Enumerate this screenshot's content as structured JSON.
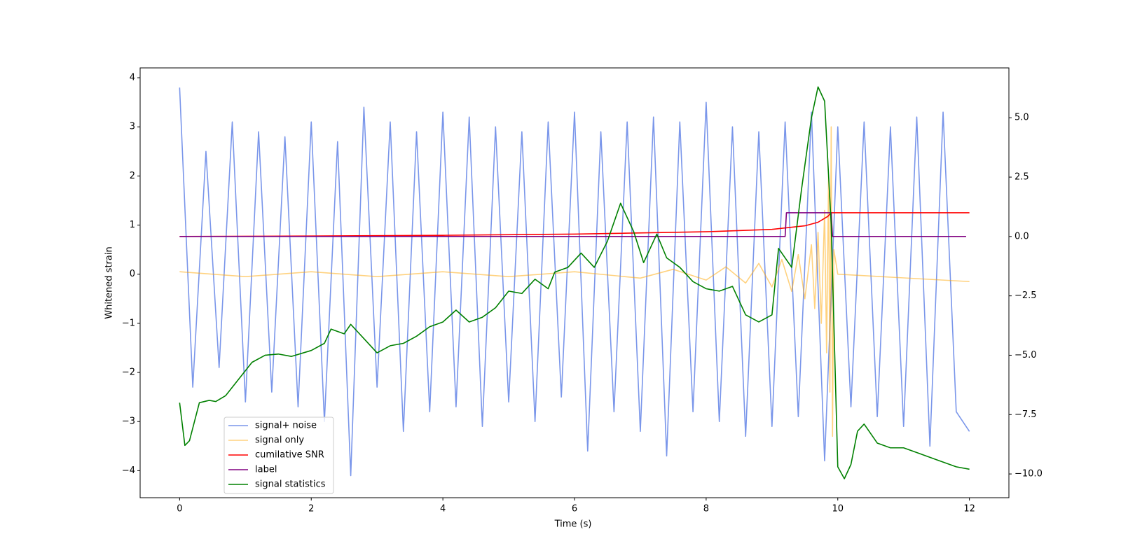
{
  "chart_data": {
    "type": "line",
    "xlabel": "Time (s)",
    "ylabel": "Whitened strain",
    "xlim": [
      -0.6,
      12.6
    ],
    "xticks": [
      0,
      2,
      4,
      6,
      8,
      10,
      12
    ],
    "ylim": [
      -4.55,
      4.2
    ],
    "yticks": [
      {
        "value": -4,
        "label": "−4"
      },
      {
        "value": -3,
        "label": "−3"
      },
      {
        "value": -2,
        "label": "−2"
      },
      {
        "value": -1,
        "label": "−1"
      },
      0,
      1,
      2,
      3,
      4
    ],
    "y2lim": [
      -11.0,
      7.1
    ],
    "y2ticks": [
      {
        "value": -10,
        "label": "−10.0"
      },
      {
        "value": -7.5,
        "label": "−7.5"
      },
      {
        "value": -5,
        "label": "−5.0"
      },
      {
        "value": -2.5,
        "label": "−2.5"
      },
      {
        "value": 0,
        "label": "0.0"
      },
      {
        "value": 2.5,
        "label": "2.5"
      },
      {
        "value": 5,
        "label": "5.0"
      }
    ],
    "legend": "lower left",
    "series": [
      {
        "name": "signal+ noise",
        "color": "#4169e1",
        "alpha": 0.7,
        "x": [
          0,
          0.2,
          0.4,
          0.6,
          0.8,
          1.0,
          1.2,
          1.4,
          1.6,
          1.8,
          2.0,
          2.2,
          2.4,
          2.6,
          2.8,
          3.0,
          3.2,
          3.4,
          3.6,
          3.8,
          4.0,
          4.2,
          4.4,
          4.6,
          4.8,
          5.0,
          5.2,
          5.4,
          5.6,
          5.8,
          6.0,
          6.2,
          6.4,
          6.6,
          6.8,
          7.0,
          7.2,
          7.4,
          7.6,
          7.8,
          8.0,
          8.2,
          8.4,
          8.6,
          8.8,
          9.0,
          9.2,
          9.4,
          9.6,
          9.8,
          10.0,
          10.2,
          10.4,
          10.6,
          10.8,
          11.0,
          11.2,
          11.4,
          11.6,
          11.8,
          12.0
        ],
        "values": [
          3.8,
          -2.3,
          2.5,
          -1.9,
          3.1,
          -2.6,
          2.9,
          -2.4,
          2.8,
          -2.7,
          3.1,
          -3.0,
          2.7,
          -4.1,
          3.4,
          -2.3,
          3.1,
          -3.2,
          2.9,
          -2.8,
          3.3,
          -2.7,
          3.2,
          -3.1,
          3.0,
          -2.6,
          2.9,
          -3.0,
          3.1,
          -2.5,
          3.3,
          -3.6,
          2.9,
          -2.8,
          3.1,
          -3.2,
          3.2,
          -3.7,
          3.1,
          -2.8,
          3.5,
          -3.0,
          3.0,
          -3.3,
          2.9,
          -3.1,
          3.1,
          -2.9,
          3.3,
          -3.8,
          3.0,
          -2.7,
          3.1,
          -2.9,
          3.0,
          -3.1,
          3.2,
          -3.5,
          3.3,
          -2.8,
          -3.2
        ]
      },
      {
        "name": "signal only",
        "color": "#ffa500",
        "alpha": 0.5,
        "x": [
          0,
          1,
          2,
          3,
          4,
          5,
          6,
          7,
          7.5,
          8,
          8.3,
          8.6,
          8.8,
          9.0,
          9.15,
          9.3,
          9.4,
          9.5,
          9.6,
          9.65,
          9.7,
          9.75,
          9.8,
          9.83,
          9.86,
          9.88,
          9.9,
          9.92,
          9.94,
          10.0,
          12.0
        ],
        "values": [
          0.05,
          -0.05,
          0.05,
          -0.05,
          0.05,
          -0.05,
          0.05,
          -0.08,
          0.1,
          -0.12,
          0.15,
          -0.18,
          0.22,
          -0.26,
          0.3,
          -0.35,
          0.4,
          -0.5,
          0.6,
          -0.7,
          0.85,
          -1.0,
          1.3,
          -1.6,
          2.0,
          -2.4,
          3.0,
          -3.3,
          0.5,
          0,
          -0.15
        ]
      },
      {
        "name": "cumilative SNR",
        "color": "#ff0000",
        "alpha": 1,
        "axis": "y2",
        "x": [
          0,
          2,
          4,
          6,
          8,
          9,
          9.5,
          9.7,
          9.85,
          9.9,
          10,
          12
        ],
        "values": [
          0,
          0.02,
          0.05,
          0.1,
          0.2,
          0.3,
          0.45,
          0.6,
          0.85,
          1,
          1,
          1
        ]
      },
      {
        "name": "label",
        "color": "#800080",
        "alpha": 1,
        "axis": "y2",
        "x": [
          0,
          9.2,
          9.22,
          9.9,
          9.92,
          11.95
        ],
        "values": [
          0,
          0,
          1,
          1,
          0,
          0
        ]
      },
      {
        "name": "signal statistics",
        "color": "#008000",
        "alpha": 1,
        "axis": "y2",
        "x": [
          0,
          0.08,
          0.15,
          0.3,
          0.45,
          0.55,
          0.7,
          0.9,
          1.1,
          1.3,
          1.5,
          1.7,
          2.0,
          2.2,
          2.3,
          2.5,
          2.6,
          2.8,
          3.0,
          3.2,
          3.4,
          3.6,
          3.8,
          4.0,
          4.2,
          4.4,
          4.6,
          4.8,
          5.0,
          5.2,
          5.4,
          5.6,
          5.7,
          5.9,
          6.1,
          6.3,
          6.5,
          6.7,
          6.9,
          7.05,
          7.25,
          7.4,
          7.6,
          7.8,
          8.0,
          8.2,
          8.4,
          8.6,
          8.8,
          9.0,
          9.1,
          9.3,
          9.45,
          9.6,
          9.7,
          9.8,
          9.9,
          10.0,
          10.1,
          10.2,
          10.3,
          10.4,
          10.6,
          10.8,
          11.0,
          11.2,
          11.5,
          11.8,
          12.0
        ],
        "values": [
          -7.0,
          -8.8,
          -8.6,
          -7.0,
          -6.9,
          -6.95,
          -6.7,
          -6.0,
          -5.3,
          -5.0,
          -4.95,
          -5.05,
          -4.8,
          -4.5,
          -3.9,
          -4.1,
          -3.7,
          -4.3,
          -4.9,
          -4.6,
          -4.5,
          -4.2,
          -3.8,
          -3.6,
          -3.1,
          -3.6,
          -3.4,
          -3.0,
          -2.3,
          -2.4,
          -1.8,
          -2.2,
          -1.5,
          -1.3,
          -0.7,
          -1.3,
          -0.2,
          1.4,
          0.2,
          -1.1,
          0.1,
          -0.9,
          -1.3,
          -1.9,
          -2.2,
          -2.3,
          -2.1,
          -3.3,
          -3.6,
          -3.3,
          -0.5,
          -1.3,
          2.0,
          5.0,
          6.3,
          5.7,
          0.5,
          -9.7,
          -10.2,
          -9.6,
          -8.2,
          -7.9,
          -8.7,
          -8.9,
          -8.9,
          -9.1,
          -9.4,
          -9.7,
          -9.8
        ]
      }
    ]
  }
}
